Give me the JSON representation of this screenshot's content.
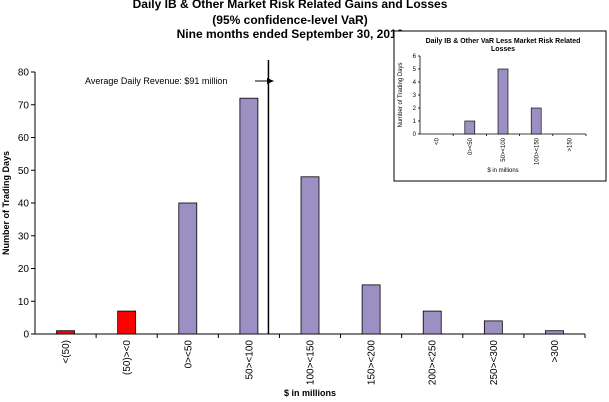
{
  "chart_data": [
    {
      "type": "bar",
      "title": "Daily IB & Other Market Risk Related Gains and Losses",
      "subtitle": "(95% confidence-level  VaR)",
      "subtitle2": "Nine months ended September 30, 2010",
      "xlabel": "$ in millions",
      "ylabel": "Number of Trading Days",
      "ylim": [
        0,
        80
      ],
      "yticks": [
        0,
        10,
        20,
        30,
        40,
        50,
        60,
        70,
        80
      ],
      "categories": [
        "<(50)",
        "(50)><0",
        "0><50",
        "50><100",
        "100><150",
        "150><200",
        "200><250",
        "250><300",
        ">300"
      ],
      "values": [
        1,
        7,
        40,
        72,
        48,
        15,
        7,
        4,
        1
      ],
      "colors": [
        "#ff0000",
        "#ff0000",
        "#9b8fc4",
        "#9b8fc4",
        "#9b8fc4",
        "#9b8fc4",
        "#9b8fc4",
        "#9b8fc4",
        "#9b8fc4"
      ],
      "annotation": "Average Daily Revenue:  $91 million",
      "average_marker_value": 91
    },
    {
      "type": "bar",
      "title_line1": "Daily IB & Other VaR Less Market Risk Related",
      "title_line2": "Losses",
      "xlabel": "$ in millions",
      "ylabel": "Number of Trading Days",
      "ylim": [
        0,
        6
      ],
      "yticks": [
        0,
        1,
        2,
        3,
        4,
        5,
        6
      ],
      "categories": [
        "<0",
        "0><50",
        "50><100",
        "100><150",
        ">150"
      ],
      "values": [
        0,
        1,
        5,
        2,
        0
      ],
      "color": "#9b8fc4"
    }
  ]
}
